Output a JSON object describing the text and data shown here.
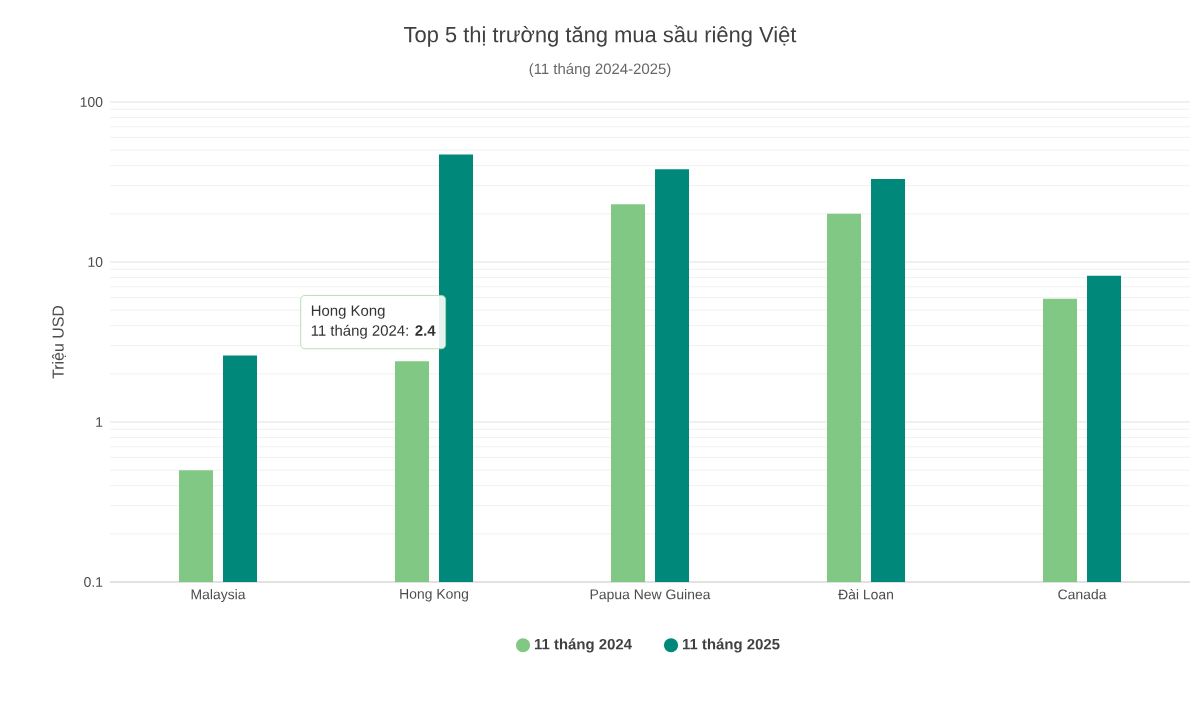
{
  "chart_data": {
    "type": "bar",
    "title": "Top 5 thị trường tăng mua sầu riêng Việt",
    "subtitle": "(11 tháng 2024-2025)",
    "ylabel": "Triệu USD",
    "categories": [
      "Malaysia",
      "Hong Kong",
      "Papua New Guinea",
      "Đài Loan",
      "Canada"
    ],
    "series": [
      {
        "name": "11 tháng 2024",
        "color": "#80c883",
        "values": [
          0.5,
          2.4,
          23,
          20,
          5.9
        ]
      },
      {
        "name": "11 tháng 2025",
        "color": "#00897b",
        "values": [
          2.6,
          47,
          38,
          33,
          8.2
        ]
      }
    ],
    "log": "y",
    "ylim": [
      0.1,
      100
    ],
    "yticks": [
      0.1,
      1,
      10,
      100
    ],
    "grid": "y",
    "legend": "bottom",
    "annotations": [
      "Hong Kong",
      {
        "text": "11 tháng 2024: **2.4**",
        "x": "Hong Kong",
        "y": 2.4
      }
    ]
  }
}
